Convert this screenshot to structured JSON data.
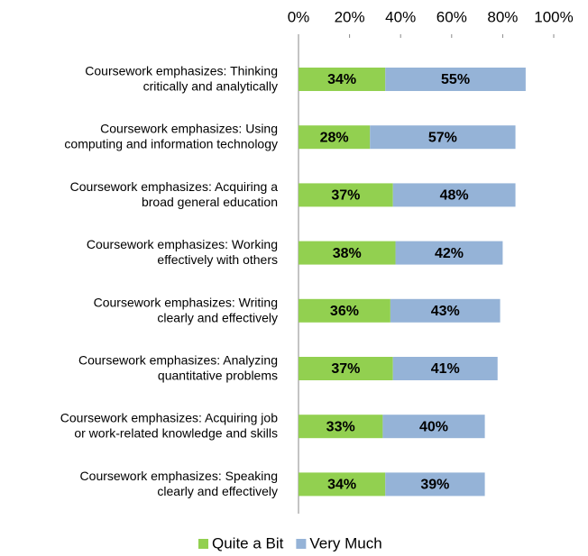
{
  "chart_data": {
    "type": "stacked-bar-horizontal",
    "categories": [
      "Coursework emphasizes: Thinking\ncritically and analytically",
      "Coursework emphasizes: Using\ncomputing and information technology",
      "Coursework emphasizes: Acquiring a\nbroad general education",
      "Coursework emphasizes: Working\neffectively with others",
      "Coursework emphasizes: Writing\nclearly and effectively",
      "Coursework emphasizes: Analyzing\nquantitative problems",
      "Coursework emphasizes: Acquiring job\nor work-related knowledge and skills",
      "Coursework emphasizes: Speaking\nclearly and effectively"
    ],
    "series": [
      {
        "name": "Quite a Bit",
        "color": "#92d050",
        "values": [
          34,
          28,
          37,
          38,
          36,
          37,
          33,
          34
        ],
        "value_labels": [
          "34%",
          "28%",
          "37%",
          "38%",
          "36%",
          "37%",
          "33%",
          "34%"
        ]
      },
      {
        "name": "Very Much",
        "color": "#95b3d7",
        "values": [
          55,
          57,
          48,
          42,
          43,
          41,
          40,
          39
        ],
        "value_labels": [
          "55%",
          "57%",
          "48%",
          "42%",
          "43%",
          "41%",
          "40%",
          "39%"
        ]
      }
    ],
    "xlim": [
      0,
      100
    ],
    "xticks": [
      {
        "value": 0,
        "label": "0%"
      },
      {
        "value": 20,
        "label": "20%"
      },
      {
        "value": 40,
        "label": "40%"
      },
      {
        "value": 60,
        "label": "60%"
      },
      {
        "value": 80,
        "label": "80%"
      },
      {
        "value": 100,
        "label": "100%"
      }
    ],
    "legend": "bottom"
  }
}
